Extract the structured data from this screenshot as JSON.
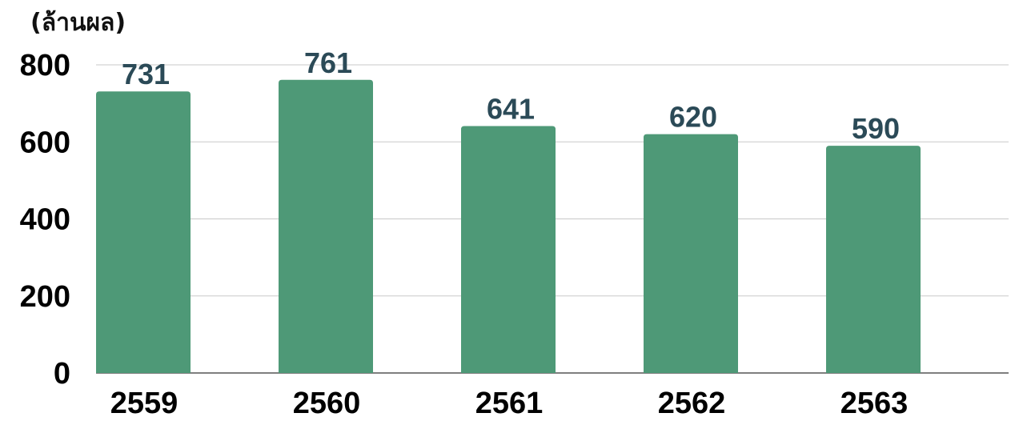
{
  "chart_data": {
    "type": "bar",
    "ylabel": "(ล้านผล)",
    "categories": [
      "2559",
      "2560",
      "2561",
      "2562",
      "2563"
    ],
    "values": [
      731,
      761,
      641,
      620,
      590
    ],
    "value_labels": [
      "731",
      "761",
      "641",
      "620",
      "590"
    ],
    "ylim": [
      0,
      800
    ],
    "yticks": [
      0,
      200,
      400,
      600,
      800
    ],
    "ytick_labels": [
      "0",
      "200",
      "400",
      "600",
      "800"
    ],
    "grid": true,
    "bar_color": "#4e9977",
    "label_color": "#2b4a57"
  }
}
